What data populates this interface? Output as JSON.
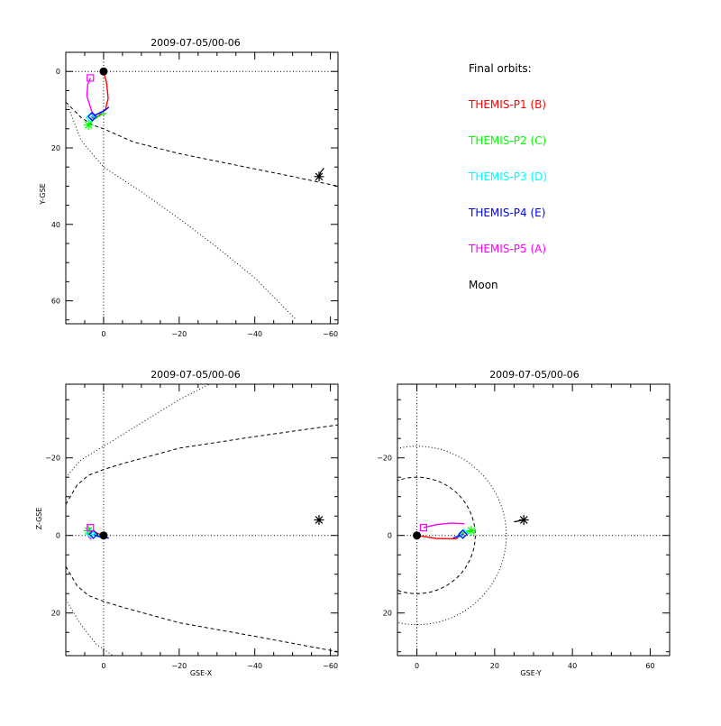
{
  "chart_data": [
    {
      "type": "line",
      "id": "xy",
      "title": "2009-07-05/00-06",
      "xlabel": "",
      "ylabel": "Y-GSE",
      "xlim": [
        10,
        -62
      ],
      "ylim": [
        -5,
        66
      ],
      "xticks": [
        0,
        -20,
        -40,
        -60
      ],
      "xtick_labels": [
        "0",
        "−20",
        "−40",
        "−60"
      ],
      "yticks": [
        0,
        20,
        40,
        60
      ],
      "ytick_labels": [
        "0",
        "20",
        "40",
        "60"
      ],
      "grid": false,
      "reference_lines": [
        {
          "axis": "x",
          "value": 0
        },
        {
          "axis": "y",
          "value": 0
        }
      ],
      "boundaries": [
        {
          "name": "",
          "style": "dotted",
          "x": [
            10,
            6,
            0,
            -10,
            -20,
            -30,
            -40,
            -51
          ],
          "y": [
            7.5,
            18,
            25,
            31.5,
            38.5,
            46,
            54,
            65
          ]
        },
        {
          "name": "",
          "style": "dashed",
          "x": [
            10,
            6,
            3,
            0,
            -8,
            -20,
            -30,
            -40,
            -50,
            -62
          ],
          "y": [
            8,
            12,
            14,
            15,
            18.5,
            21.5,
            23.5,
            25.5,
            27.5,
            30
          ]
        }
      ],
      "series": [
        {
          "name": "",
          "color": "#ff0000",
          "x": [
            0,
            -0.8,
            -1.2,
            -0.5,
            1.8,
            3.2
          ],
          "y": [
            0,
            3,
            7,
            10,
            12,
            12.2
          ]
        },
        {
          "name": "",
          "color": "#00ff00",
          "x": [
            4,
            2.5,
            0.5,
            -0.8
          ],
          "y": [
            14,
            12.5,
            11.3,
            11
          ]
        },
        {
          "name": "",
          "color": "#00ffff",
          "x": [
            3.5,
            2.5,
            1.2,
            0
          ],
          "y": [
            12,
            11.5,
            11,
            10.5
          ]
        },
        {
          "name": "",
          "color": "#0000ff",
          "x": [
            3.0,
            2.0,
            0.8,
            -0.6,
            -1.4
          ],
          "y": [
            11.8,
            11.3,
            10.7,
            10.0,
            9.3
          ]
        },
        {
          "name": "",
          "color": "#ff00ff",
          "x": [
            3.5,
            4.2,
            4.4,
            3.2,
            2.6
          ],
          "y": [
            1.7,
            3.5,
            6.5,
            10.2,
            12.2
          ]
        }
      ],
      "markers": [
        {
          "symbol": "circle",
          "color": "#000000",
          "x": 0,
          "y": 0
        },
        {
          "symbol": "asterisk",
          "color": "#00ff00",
          "x": 4,
          "y": 14
        },
        {
          "symbol": "diamond",
          "color": "#00ffff",
          "x": 3.5,
          "y": 12
        },
        {
          "symbol": "diamond",
          "color": "#0000ff",
          "x": 3.0,
          "y": 11.8
        },
        {
          "symbol": "square",
          "color": "#ff00ff",
          "x": 3.5,
          "y": 1.7
        },
        {
          "symbol": "asterisk",
          "color": "#000000",
          "x": -57,
          "y": 27.5
        }
      ],
      "moon_track": {
        "x": [
          -57,
          -57.5,
          -58.3
        ],
        "y": [
          27.5,
          26.2,
          25.3
        ]
      }
    },
    {
      "type": "line",
      "id": "xz",
      "title": "2009-07-05/00-06",
      "xlabel": "GSE-X",
      "ylabel": "Z-GSE",
      "xlim": [
        10,
        -62
      ],
      "ylim": [
        -39,
        31
      ],
      "xticks": [
        0,
        -20,
        -40,
        -60
      ],
      "xtick_labels": [
        "0",
        "−20",
        "−40",
        "−60"
      ],
      "yticks": [
        20,
        0,
        -20
      ],
      "ytick_labels": [
        "20",
        "0",
        "−20"
      ],
      "grid": false,
      "reference_lines": [
        {
          "axis": "x",
          "value": 0
        },
        {
          "axis": "y",
          "value": 0
        }
      ],
      "boundaries": [
        {
          "name": "",
          "style": "dotted",
          "x": [
            10,
            6,
            2,
            -2.5
          ],
          "y": [
            16.5,
            23,
            28,
            31
          ]
        },
        {
          "name": "",
          "style": "dotted",
          "x": [
            10,
            6,
            0,
            -10,
            -20,
            -28
          ],
          "y": [
            -15,
            -19.5,
            -23,
            -29,
            -35,
            -39
          ]
        },
        {
          "name": "",
          "style": "dashed",
          "x": [
            10,
            7,
            4,
            0,
            -5,
            -20,
            -40,
            -62
          ],
          "y": [
            8,
            13,
            15.5,
            17,
            18.5,
            22.5,
            26,
            30
          ]
        },
        {
          "name": "",
          "style": "dashed",
          "x": [
            10,
            7,
            4,
            0,
            -5,
            -20,
            -40,
            -62
          ],
          "y": [
            -8,
            -13,
            -15.5,
            -17,
            -18.5,
            -22.5,
            -25.5,
            -28.5
          ]
        }
      ],
      "series": [
        {
          "name": "",
          "color": "#ff0000",
          "x": [
            0,
            1.5,
            3.3
          ],
          "y": [
            0,
            -0.5,
            -1.3
          ]
        },
        {
          "name": "",
          "color": "#00ff00",
          "x": [
            4,
            2.5,
            1
          ],
          "y": [
            -1.2,
            -0.8,
            0
          ]
        },
        {
          "name": "",
          "color": "#00ffff",
          "x": [
            3.5,
            2,
            0.5
          ],
          "y": [
            -0.5,
            0.2,
            0.5
          ]
        },
        {
          "name": "",
          "color": "#0000ff",
          "x": [
            2.7,
            1.2,
            -1.4
          ],
          "y": [
            -0.3,
            0.3,
            0.7
          ]
        },
        {
          "name": "",
          "color": "#ff00ff",
          "x": [
            3.5,
            4.2,
            4.0,
            3.2
          ],
          "y": [
            -2,
            -1,
            0.3,
            1.0
          ]
        }
      ],
      "markers": [
        {
          "symbol": "circle",
          "color": "#000000",
          "x": 0,
          "y": 0
        },
        {
          "symbol": "asterisk",
          "color": "#00ff00",
          "x": 4,
          "y": -1.2
        },
        {
          "symbol": "diamond",
          "color": "#00ffff",
          "x": 3.5,
          "y": -0.5
        },
        {
          "symbol": "diamond",
          "color": "#0000ff",
          "x": 2.7,
          "y": -0.3
        },
        {
          "symbol": "square",
          "color": "#ff00ff",
          "x": 3.5,
          "y": -2
        },
        {
          "symbol": "asterisk",
          "color": "#000000",
          "x": -57,
          "y": -4
        }
      ],
      "moon_track": {
        "x": [
          -57
        ],
        "y": [
          -4
        ]
      }
    },
    {
      "type": "line",
      "id": "yz",
      "title": "2009-07-05/00-06",
      "xlabel": "GSE-Y",
      "ylabel": "",
      "xlim": [
        -5,
        65
      ],
      "ylim": [
        -39,
        31
      ],
      "xticks": [
        0,
        20,
        40,
        60
      ],
      "xtick_labels": [
        "0",
        "20",
        "40",
        "60"
      ],
      "yticks": [
        20,
        0,
        -20
      ],
      "ytick_labels": [
        "20",
        "0",
        "−20"
      ],
      "grid": false,
      "reference_lines": [
        {
          "axis": "x",
          "value": 0
        },
        {
          "axis": "y",
          "value": 0
        }
      ],
      "circles": [
        {
          "style": "dotted",
          "cx": 0,
          "cy": 0,
          "r": 23
        },
        {
          "style": "dashed",
          "cx": 0,
          "cy": 0,
          "r": 15
        }
      ],
      "series": [
        {
          "name": "",
          "color": "#ff0000",
          "x": [
            0,
            5,
            10,
            12.2
          ],
          "y": [
            0,
            0.8,
            0.9,
            -0.5
          ]
        },
        {
          "name": "",
          "color": "#00ff00",
          "x": [
            11,
            12.5,
            14
          ],
          "y": [
            -0.5,
            -0.8,
            -1.2
          ]
        },
        {
          "name": "",
          "color": "#00ffff",
          "x": [
            10.5,
            11.2,
            12
          ],
          "y": [
            0.5,
            0,
            -0.5
          ]
        },
        {
          "name": "",
          "color": "#0000ff",
          "x": [
            9.3,
            10.5,
            11.8
          ],
          "y": [
            0.7,
            0.2,
            -0.3
          ]
        },
        {
          "name": "",
          "color": "#ff00ff",
          "x": [
            1.7,
            5,
            9,
            12.2
          ],
          "y": [
            -2,
            -2.8,
            -3.2,
            -3.0
          ]
        }
      ],
      "markers": [
        {
          "symbol": "circle",
          "color": "#000000",
          "x": 0,
          "y": 0
        },
        {
          "symbol": "asterisk",
          "color": "#00ff00",
          "x": 14,
          "y": -1.2
        },
        {
          "symbol": "diamond",
          "color": "#00ffff",
          "x": 12,
          "y": -0.5
        },
        {
          "symbol": "diamond",
          "color": "#0000ff",
          "x": 11.8,
          "y": -0.3
        },
        {
          "symbol": "square",
          "color": "#ff00ff",
          "x": 1.7,
          "y": -2
        },
        {
          "symbol": "asterisk",
          "color": "#000000",
          "x": 27.5,
          "y": -4
        }
      ],
      "moon_track": {
        "x": [
          25,
          27.5
        ],
        "y": [
          -3.5,
          -4
        ]
      }
    }
  ],
  "legend": {
    "title": "Final orbits:",
    "entries": [
      {
        "label": "THEMIS-P1 (B)",
        "color": "#ff0000"
      },
      {
        "label": "THEMIS-P2 (C)",
        "color": "#00ff00"
      },
      {
        "label": "THEMIS-P3 (D)",
        "color": "#00ffff"
      },
      {
        "label": "THEMIS-P4 (E)",
        "color": "#0000ff"
      },
      {
        "label": "THEMIS-P5 (A)",
        "color": "#ff00ff"
      },
      {
        "label": "Moon",
        "color": "#000000"
      }
    ]
  }
}
